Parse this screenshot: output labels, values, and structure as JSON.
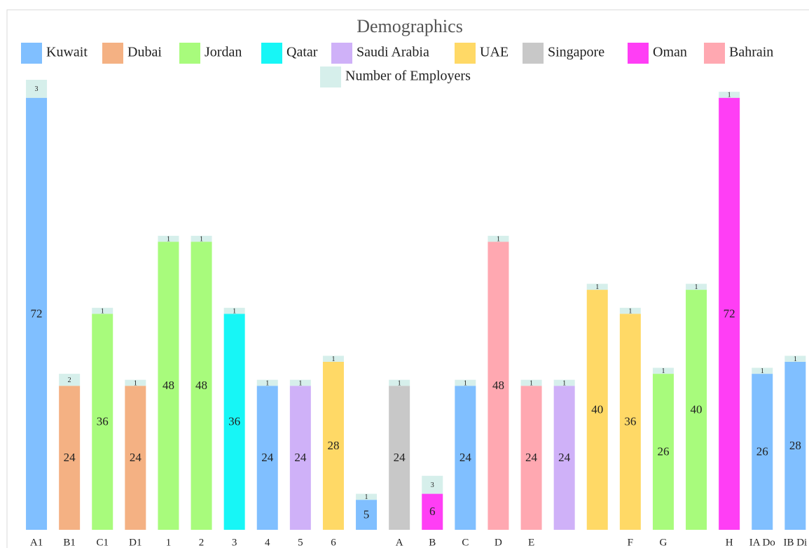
{
  "chart_data": {
    "type": "stacked_bar",
    "title": "Demographics",
    "categories": [
      "A1",
      "B1",
      "C1",
      "D1",
      "1",
      "2",
      "3",
      "4",
      "5",
      "6",
      null,
      "A",
      "B",
      "C",
      "D",
      "E",
      null,
      null,
      "F",
      "G",
      null,
      "H",
      "IA Do",
      "IB Di"
    ],
    "ylim": [
      0,
      75
    ],
    "series": [
      {
        "name": "Kuwait",
        "color": "#80bfff",
        "values": [
          72,
          null,
          null,
          null,
          null,
          null,
          null,
          24,
          null,
          null,
          5,
          null,
          null,
          24,
          null,
          null,
          null,
          null,
          null,
          null,
          null,
          null,
          26,
          28
        ]
      },
      {
        "name": "Dubai",
        "color": "#f4b183",
        "values": [
          null,
          24,
          null,
          24,
          null,
          null,
          null,
          null,
          null,
          null,
          null,
          null,
          null,
          null,
          null,
          null,
          null,
          null,
          null,
          null,
          null,
          null,
          null,
          null
        ]
      },
      {
        "name": "Jordan",
        "color": "#a8fb7c",
        "values": [
          null,
          null,
          36,
          null,
          48,
          48,
          null,
          null,
          null,
          null,
          null,
          null,
          null,
          null,
          null,
          null,
          null,
          null,
          null,
          26,
          40,
          null,
          null,
          null
        ]
      },
      {
        "name": "Qatar",
        "color": "#17f6f6",
        "values": [
          null,
          null,
          null,
          null,
          null,
          null,
          36,
          null,
          null,
          null,
          null,
          null,
          null,
          null,
          null,
          null,
          null,
          null,
          null,
          null,
          null,
          null,
          null,
          null
        ]
      },
      {
        "name": "Saudi Arabia",
        "color": "#cfb1f8",
        "values": [
          null,
          null,
          null,
          null,
          null,
          null,
          null,
          null,
          24,
          null,
          null,
          null,
          null,
          null,
          null,
          null,
          24,
          null,
          null,
          null,
          null,
          null,
          null,
          null
        ]
      },
      {
        "name": "UAE",
        "color": "#ffd966",
        "values": [
          null,
          null,
          null,
          null,
          null,
          null,
          null,
          null,
          null,
          28,
          null,
          null,
          null,
          null,
          null,
          null,
          null,
          40,
          36,
          null,
          null,
          null,
          null,
          null
        ]
      },
      {
        "name": "Singapore",
        "color": "#c8c8c8",
        "values": [
          null,
          null,
          null,
          null,
          null,
          null,
          null,
          null,
          null,
          null,
          null,
          24,
          null,
          null,
          null,
          null,
          null,
          null,
          null,
          null,
          null,
          null,
          null,
          null
        ]
      },
      {
        "name": "Oman",
        "color": "#ff3ef5",
        "values": [
          null,
          null,
          null,
          null,
          null,
          null,
          null,
          null,
          null,
          null,
          null,
          null,
          6,
          null,
          null,
          null,
          null,
          null,
          null,
          null,
          null,
          72,
          null,
          null
        ]
      },
      {
        "name": "Bahrain",
        "color": "#ffa8b1",
        "values": [
          null,
          null,
          null,
          null,
          null,
          null,
          null,
          null,
          null,
          null,
          null,
          null,
          null,
          null,
          48,
          24,
          null,
          null,
          null,
          null,
          null,
          null,
          null,
          null
        ]
      },
      {
        "name": "Number of Employers",
        "color": "#d6efeb",
        "values": [
          3,
          2,
          1,
          1,
          1,
          1,
          1,
          1,
          1,
          1,
          1,
          1,
          3,
          1,
          1,
          1,
          1,
          1,
          1,
          1,
          1,
          1,
          1,
          1
        ]
      }
    ]
  }
}
